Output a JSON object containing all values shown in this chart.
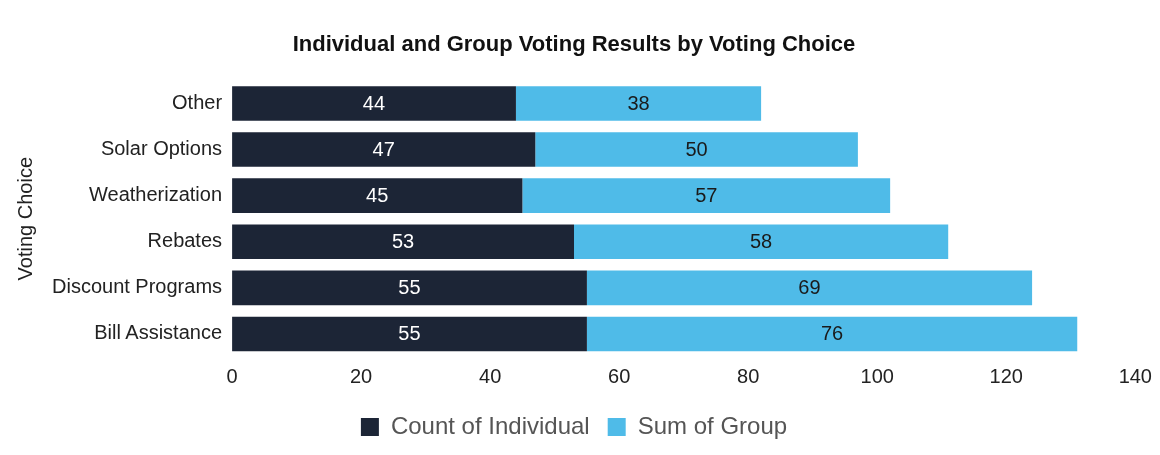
{
  "chart_data": {
    "type": "bar",
    "orientation": "horizontal",
    "stacked": true,
    "title": "Individual and Group Voting Results by Voting Choice",
    "ylabel": "Voting Choice",
    "categories": [
      "Other",
      "Solar Options",
      "Weatherization",
      "Rebates",
      "Discount Programs",
      "Bill Assistance"
    ],
    "series": [
      {
        "name": "Count of Individual",
        "color": "#1c2536",
        "values": [
          44,
          47,
          45,
          53,
          55,
          55
        ]
      },
      {
        "name": "Sum of Group",
        "color": "#4fbbe8",
        "values": [
          38,
          50,
          57,
          58,
          69,
          76
        ]
      }
    ],
    "xlim": [
      0,
      140
    ],
    "xticks": [
      0,
      20,
      40,
      60,
      80,
      100,
      120,
      140
    ],
    "grid": false,
    "legend": "bottom",
    "data_labels": true
  }
}
